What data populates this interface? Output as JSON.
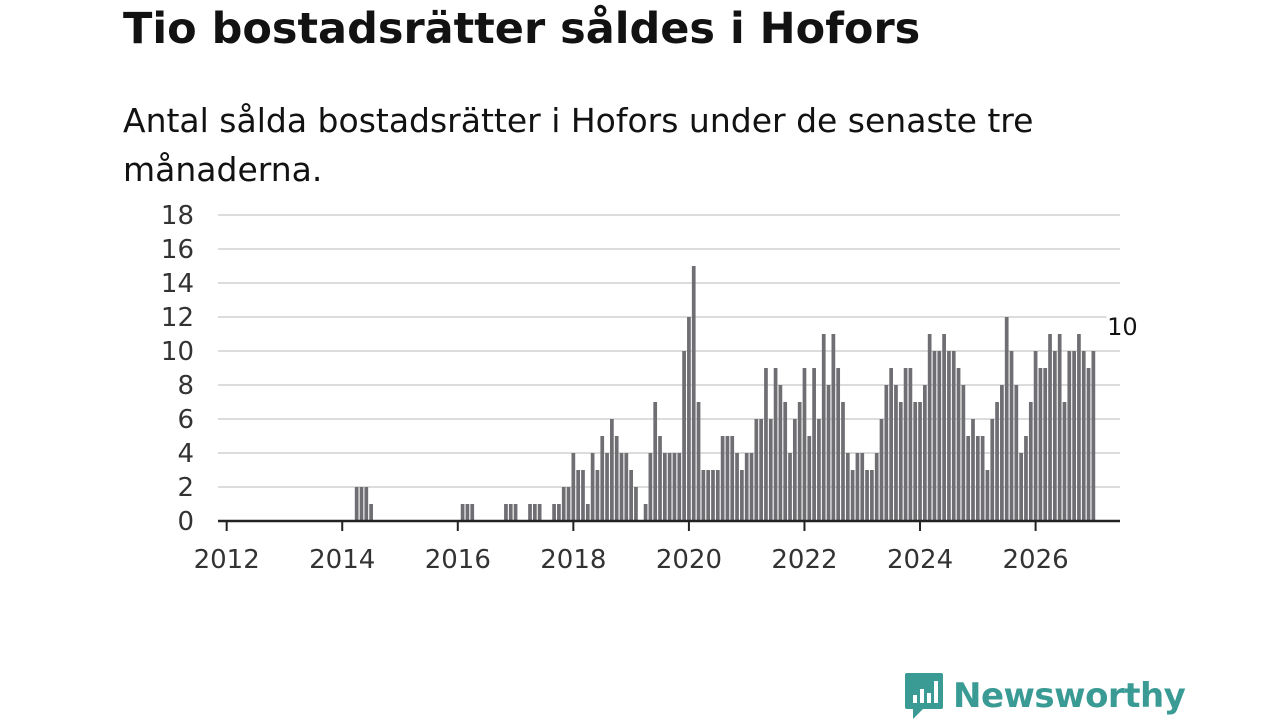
{
  "title": "Tio bostadsrätter såldes i Hofors",
  "subtitle": "Antal sålda bostadsrätter i Hofors under de senaste tre månaderna.",
  "brand": {
    "name": "Newsworthy",
    "color": "#3a9a94"
  },
  "colors": {
    "bar": "#6e6e73",
    "highlight": "#1a9e96",
    "grid": "#dcdcdc",
    "axis": "#222222"
  },
  "chart_data": {
    "type": "bar",
    "title": "Tio bostadsrätter såldes i Hofors",
    "xlabel": "",
    "ylabel": "",
    "x_start": "2011-12",
    "frequency": "monthly",
    "ylim": [
      0,
      18
    ],
    "yticks": [
      0,
      2,
      4,
      6,
      8,
      10,
      12,
      14,
      16,
      18
    ],
    "xticks": [
      {
        "label": "2012",
        "month_index": 1
      },
      {
        "label": "2014",
        "month_index": 25
      },
      {
        "label": "2016",
        "month_index": 49
      },
      {
        "label": "2018",
        "month_index": 73
      },
      {
        "label": "2020",
        "month_index": 97
      },
      {
        "label": "2022",
        "month_index": 121
      },
      {
        "label": "2024",
        "month_index": 145
      },
      {
        "label": "2026",
        "month_index": 169
      }
    ],
    "values": [
      0,
      0,
      0,
      0,
      0,
      0,
      0,
      0,
      0,
      0,
      0,
      0,
      0,
      0,
      0,
      0,
      0,
      0,
      0,
      0,
      0,
      0,
      0,
      0,
      0,
      0,
      0,
      0,
      2,
      2,
      2,
      1,
      0,
      0,
      0,
      0,
      0,
      0,
      0,
      0,
      0,
      0,
      0,
      0,
      0,
      0,
      0,
      0,
      0,
      0,
      1,
      1,
      1,
      0,
      0,
      0,
      0,
      0,
      0,
      1,
      1,
      1,
      0,
      0,
      1,
      1,
      1,
      0,
      0,
      1,
      1,
      2,
      2,
      4,
      3,
      3,
      1,
      4,
      3,
      5,
      4,
      6,
      5,
      4,
      4,
      3,
      2,
      0,
      1,
      4,
      7,
      5,
      4,
      4,
      4,
      4,
      10,
      12,
      15,
      7,
      3,
      3,
      3,
      3,
      5,
      5,
      5,
      4,
      3,
      4,
      4,
      6,
      6,
      9,
      6,
      9,
      8,
      7,
      4,
      6,
      7,
      9,
      5,
      9,
      6,
      11,
      8,
      11,
      9,
      7,
      4,
      3,
      4,
      4,
      3,
      3,
      4,
      6,
      8,
      9,
      8,
      7,
      9,
      9,
      7,
      7,
      8,
      11,
      10,
      10,
      11,
      10,
      10,
      9,
      8,
      5,
      6,
      5,
      5,
      3,
      6,
      7,
      8,
      12,
      10,
      8,
      4,
      5,
      7,
      10,
      9,
      9,
      11,
      10,
      11,
      7,
      10,
      10,
      11,
      10,
      9,
      10
    ],
    "highlight_index": 187,
    "annotation": {
      "label": "10",
      "value": 10
    }
  }
}
